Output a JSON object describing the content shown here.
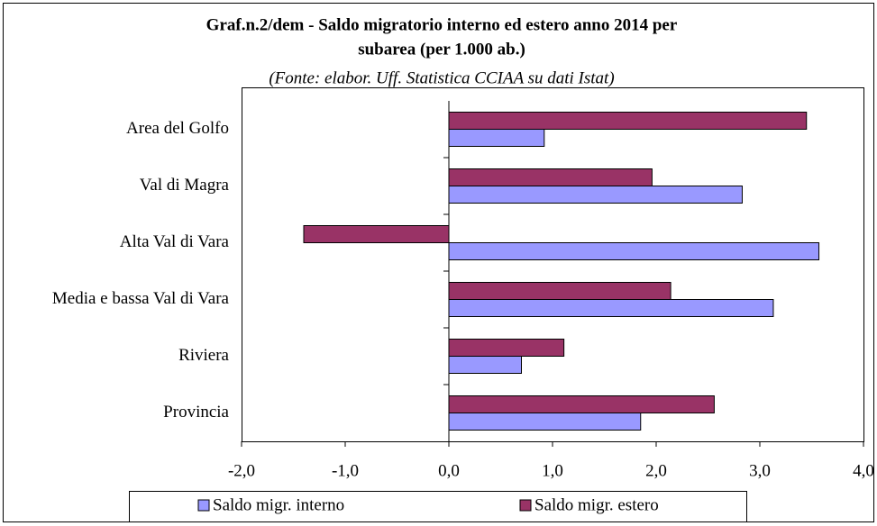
{
  "chart_data": {
    "type": "hbar",
    "title": [
      "Graf.n.2/dem - Saldo migratorio interno ed estero anno 2014  per",
      "subarea (per 1.000 ab.)"
    ],
    "subtitle": "(Fonte: elabor. Uff. Statistica CCIAA su dati Istat)",
    "categories": [
      "Area del Golfo",
      "Val di Magra",
      "Alta Val di Vara",
      "Media e bassa Val di Vara",
      "Riviera",
      "Provincia"
    ],
    "series": [
      {
        "name": "Saldo migr. interno",
        "color": "#9999ff",
        "values": [
          0.92,
          2.83,
          3.57,
          3.13,
          0.7,
          1.85
        ]
      },
      {
        "name": "Saldo migr. estero",
        "color": "#993366",
        "values": [
          3.45,
          1.96,
          -1.4,
          2.14,
          1.11,
          2.56
        ]
      }
    ],
    "xlim": [
      -2,
      4
    ],
    "xticks": [
      {
        "value": -2,
        "label": "-2,0"
      },
      {
        "value": -1,
        "label": "-1,0"
      },
      {
        "value": 0,
        "label": "0,0"
      },
      {
        "value": 1,
        "label": "1,0"
      },
      {
        "value": 2,
        "label": "2,0"
      },
      {
        "value": 3,
        "label": "3,0"
      },
      {
        "value": 4,
        "label": "4,0"
      }
    ],
    "legend": "bottom"
  }
}
